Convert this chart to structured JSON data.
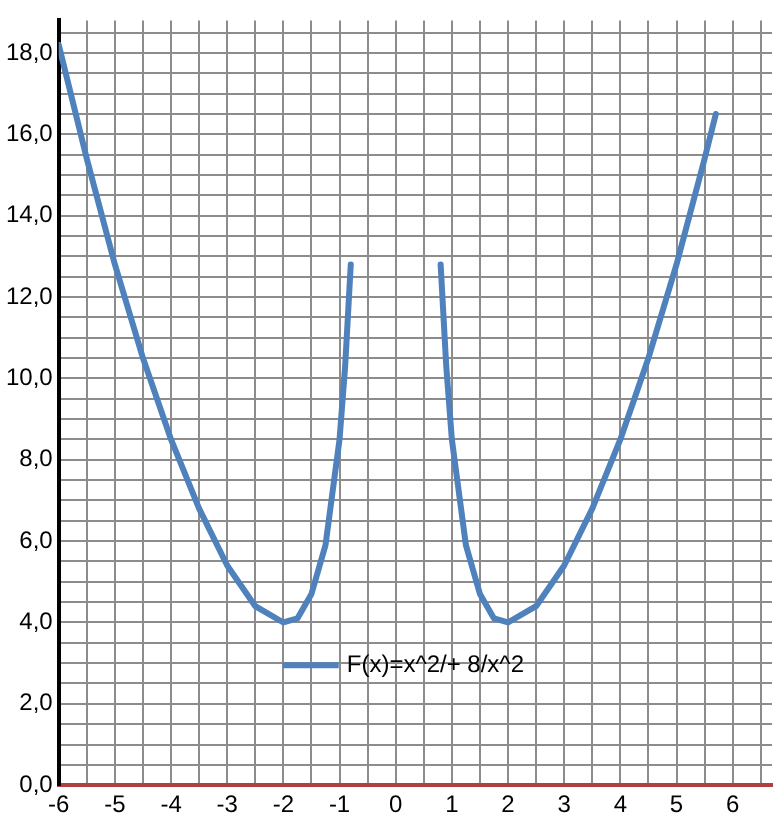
{
  "chart_data": {
    "type": "line",
    "xlim": [
      -6,
      6.7
    ],
    "ylim": [
      0,
      18.8
    ],
    "xticks": [
      {
        "value": -6,
        "label": "-6"
      },
      {
        "value": -5.5,
        "label": null
      },
      {
        "value": -5,
        "label": "-5"
      },
      {
        "value": -4.5,
        "label": null
      },
      {
        "value": -4,
        "label": "-4"
      },
      {
        "value": -3.5,
        "label": null
      },
      {
        "value": -3,
        "label": "-3"
      },
      {
        "value": -2.5,
        "label": null
      },
      {
        "value": -2,
        "label": "-2"
      },
      {
        "value": -1.5,
        "label": null
      },
      {
        "value": -1,
        "label": "-1"
      },
      {
        "value": -0.5,
        "label": null
      },
      {
        "value": 0,
        "label": "0"
      },
      {
        "value": 0.5,
        "label": null
      },
      {
        "value": 1,
        "label": "1"
      },
      {
        "value": 1.5,
        "label": null
      },
      {
        "value": 2,
        "label": "2"
      },
      {
        "value": 2.5,
        "label": null
      },
      {
        "value": 3,
        "label": "3"
      },
      {
        "value": 3.5,
        "label": null
      },
      {
        "value": 4,
        "label": "4"
      },
      {
        "value": 4.5,
        "label": null
      },
      {
        "value": 5,
        "label": "5"
      },
      {
        "value": 5.5,
        "label": null
      },
      {
        "value": 6,
        "label": "6"
      },
      {
        "value": 6.5,
        "label": null
      }
    ],
    "yticks": [
      {
        "value": 0,
        "label": "0,0"
      },
      {
        "value": 0.5,
        "label": null
      },
      {
        "value": 1,
        "label": null
      },
      {
        "value": 1.5,
        "label": null
      },
      {
        "value": 2,
        "label": "2,0"
      },
      {
        "value": 2.5,
        "label": null
      },
      {
        "value": 3,
        "label": null
      },
      {
        "value": 3.5,
        "label": null
      },
      {
        "value": 4,
        "label": "4,0"
      },
      {
        "value": 4.5,
        "label": null
      },
      {
        "value": 5,
        "label": null
      },
      {
        "value": 5.5,
        "label": null
      },
      {
        "value": 6,
        "label": "6,0"
      },
      {
        "value": 6.5,
        "label": null
      },
      {
        "value": 7,
        "label": null
      },
      {
        "value": 7.5,
        "label": null
      },
      {
        "value": 8,
        "label": "8,0"
      },
      {
        "value": 8.5,
        "label": null
      },
      {
        "value": 9,
        "label": null
      },
      {
        "value": 9.5,
        "label": null
      },
      {
        "value": 10,
        "label": "10,0"
      },
      {
        "value": 10.5,
        "label": null
      },
      {
        "value": 11,
        "label": null
      },
      {
        "value": 11.5,
        "label": null
      },
      {
        "value": 12,
        "label": "12,0"
      },
      {
        "value": 12.5,
        "label": null
      },
      {
        "value": 13,
        "label": null
      },
      {
        "value": 13.5,
        "label": null
      },
      {
        "value": 14,
        "label": "14,0"
      },
      {
        "value": 14.5,
        "label": null
      },
      {
        "value": 15,
        "label": null
      },
      {
        "value": 15.5,
        "label": null
      },
      {
        "value": 16,
        "label": "16,0"
      },
      {
        "value": 16.5,
        "label": null
      },
      {
        "value": 17,
        "label": null
      },
      {
        "value": 17.5,
        "label": null
      },
      {
        "value": 18,
        "label": "18,0"
      },
      {
        "value": 18.5,
        "label": null
      }
    ],
    "grid": true,
    "legend": "bottom",
    "marker": "none",
    "line_style": "solid",
    "series": [
      {
        "name": "F(x)=x^2/+ 8/x^2",
        "color": "#4f81bd",
        "x": [
          -6,
          -5.5,
          -5,
          -4.5,
          -4,
          -3.5,
          -3,
          -2.5,
          -2,
          -1.75,
          -1.5,
          -1.25,
          -1,
          -0.9,
          -0.8,
          0,
          0.8,
          0.9,
          1,
          1.25,
          1.5,
          1.75,
          2,
          2.5,
          3,
          3.5,
          4,
          4.5,
          5,
          5.5,
          5.7
        ],
        "values": [
          18.2,
          15.4,
          12.8,
          10.5,
          8.5,
          6.8,
          5.4,
          4.4,
          4.0,
          4.1,
          4.7,
          5.9,
          8.5,
          10.3,
          12.8,
          null,
          12.8,
          10.3,
          8.5,
          5.9,
          4.7,
          4.1,
          4.0,
          4.4,
          5.4,
          6.8,
          8.5,
          10.5,
          12.8,
          15.4,
          16.5
        ]
      }
    ]
  }
}
